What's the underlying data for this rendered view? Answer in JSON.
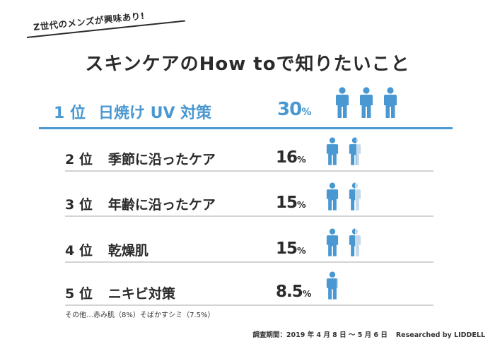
{
  "tagline": "Z世代のメンズが興味あり!",
  "title": "スキンケアのHow toで知りたいこと",
  "colors": {
    "accent": "#4a98d1",
    "icon_fill": "#4a98d1",
    "icon_empty": "#c6d9ea",
    "divider": "#d3d3d3",
    "text": "#2b2b2b"
  },
  "chart_data": {
    "type": "bar",
    "icon_unit_percent": 10,
    "categories": [
      "日焼け UV 対策",
      "季節に沿ったケア",
      "年齢に沿ったケア",
      "乾燥肌",
      "ニキビ対策"
    ],
    "ranks": [
      "1 位",
      "2 位",
      "3 位",
      "4 位",
      "5 位"
    ],
    "values": [
      30,
      16,
      15,
      15,
      8.5
    ],
    "value_labels": [
      "30",
      "16",
      "15",
      "15",
      "8.5"
    ],
    "unit": "%"
  },
  "note": "その他…赤み肌（8%）そばかすシミ（7.5%）",
  "source": {
    "period": "調査期間：2019 年 4 月 8 日 〜 5 月 6 日",
    "brand": "Researched by LIDDELL"
  }
}
